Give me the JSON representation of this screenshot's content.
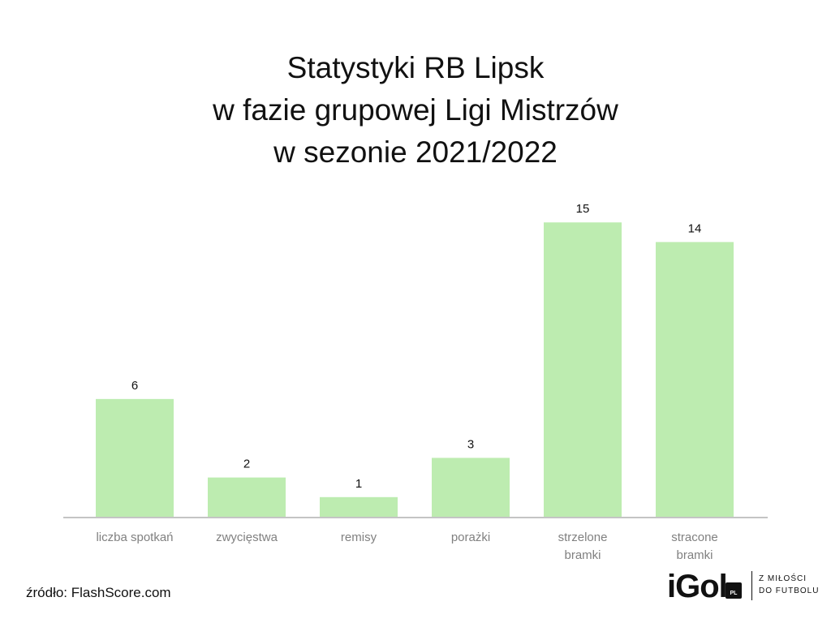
{
  "chart_data": {
    "type": "bar",
    "title": [
      "Statystyki RB Lipsk",
      "w fazie grupowej Ligi Mistrzów",
      "w sezonie 2021/2022"
    ],
    "categories": [
      [
        "liczba spotkań"
      ],
      [
        "zwycięstwa"
      ],
      [
        "remisy"
      ],
      [
        "porażki"
      ],
      [
        "strzelone",
        "bramki"
      ],
      [
        "stracone",
        "bramki"
      ]
    ],
    "values": [
      6,
      2,
      1,
      3,
      15,
      14
    ],
    "ylim": [
      0,
      16
    ],
    "grid": false,
    "bar_color": "#bdecb0",
    "axis_color": "#c4c4c4"
  },
  "source": "źródło: FlashScore.com",
  "logo": {
    "word": "iGol",
    "badge": "PL",
    "tagline": [
      "Z MIŁOŚCI",
      "DO FUTBOLU"
    ]
  }
}
